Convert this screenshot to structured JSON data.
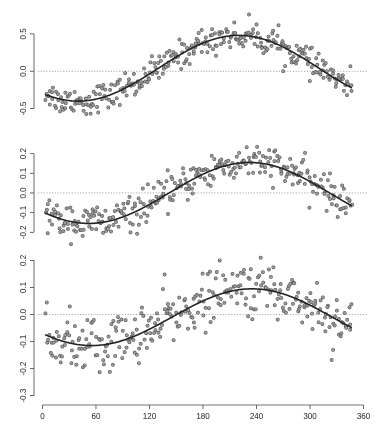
{
  "chart_data": [
    {
      "type": "scatter",
      "title": "",
      "xlabel": "",
      "ylabel": "",
      "xlim": [
        -5,
        365
      ],
      "ylim": [
        -0.72,
        0.82
      ],
      "yticks": [
        -0.5,
        0.0,
        0.5
      ],
      "ytick_labels": [
        "-0.5",
        "0.0",
        "0.5"
      ],
      "zero_line": true,
      "fit_curve": {
        "mean": 0.04,
        "amplitude": 0.44,
        "peak_x": 220
      },
      "scatter_noise": 0.09,
      "point_count": 300,
      "x_axis_shown": false
    },
    {
      "type": "scatter",
      "title": "",
      "xlabel": "",
      "ylabel": "",
      "xlim": [
        -5,
        365
      ],
      "ylim": [
        -0.29,
        0.31
      ],
      "yticks": [
        -0.2,
        -0.1,
        0.0,
        0.1,
        0.2
      ],
      "ytick_labels": [
        "-0.2",
        "-0.1",
        "0.0",
        "0.1",
        "0.2"
      ],
      "zero_line": true,
      "fit_curve": {
        "mean": 0.0,
        "amplitude": 0.155,
        "peak_x": 232
      },
      "scatter_noise": 0.045,
      "point_count": 300,
      "x_axis_shown": false
    },
    {
      "type": "scatter",
      "title": "",
      "xlabel": "",
      "ylabel": "",
      "xlim": [
        -5,
        365
      ],
      "ylim": [
        -0.32,
        0.22
      ],
      "yticks": [
        -0.3,
        -0.2,
        -0.1,
        0.0,
        0.1,
        0.2
      ],
      "ytick_labels": [
        "-0.3",
        "-0.2",
        "-0.1",
        "0.0",
        "0.1",
        "0.2"
      ],
      "xticks": [
        0,
        60,
        120,
        180,
        240,
        300,
        360
      ],
      "xtick_labels": [
        "0",
        "60",
        "120",
        "180",
        "240",
        "300",
        "360"
      ],
      "zero_line": true,
      "fit_curve": {
        "mean": -0.01,
        "amplitude": 0.105,
        "peak_x": 235
      },
      "scatter_noise": 0.05,
      "point_count": 300,
      "x_axis_shown": true
    }
  ]
}
